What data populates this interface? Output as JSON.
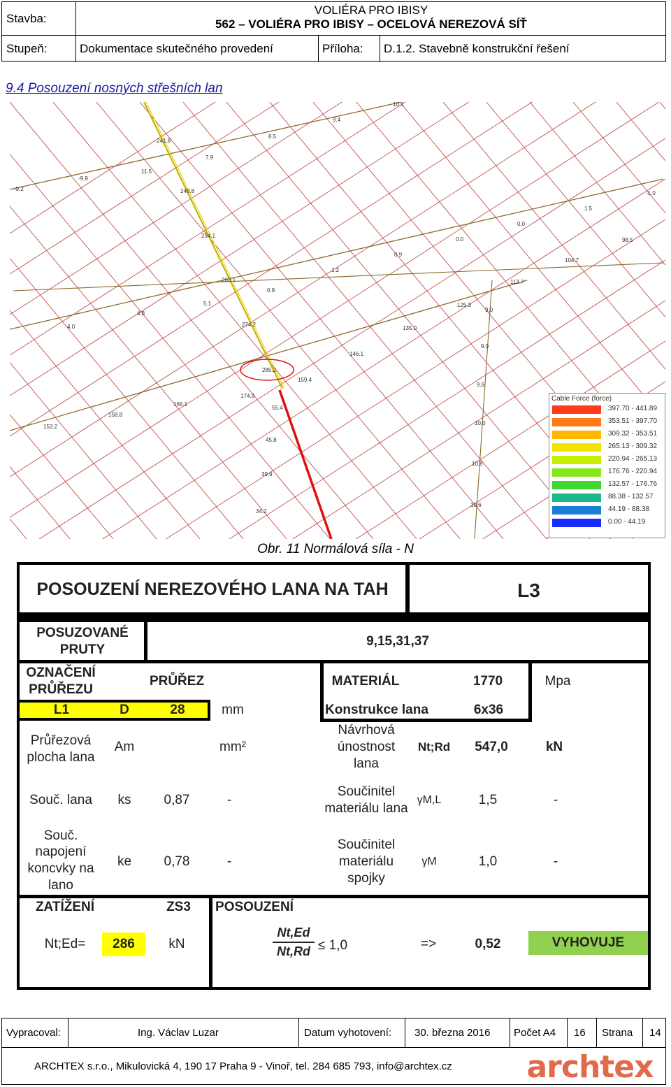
{
  "header": {
    "stavba_label": "Stavba:",
    "stavba_line1": "VOLIÉRA PRO IBISY",
    "stavba_line2": "562 – VOLIÉRA PRO IBISY – OCELOVÁ NEREZOVÁ SÍŤ",
    "stupen_label": "Stupeň:",
    "stupen_value": "Dokumentace skutečného provedení",
    "priloha_label": "Příloha:",
    "priloha_value": "D.1.2. Stavebně konstrukční řešení"
  },
  "section_title": "9.4 Posouzení nosných střešních lan",
  "drawing": {
    "labels": [
      "10.1",
      "9.4",
      "241.8",
      "8.5",
      "7.9",
      "-9.9",
      "11.5",
      "248.8",
      "-9.2",
      "254.1",
      "-1.0",
      "1.5",
      "0.0",
      "0.0",
      "0.9",
      "98.5",
      "104.7",
      "263.1",
      "1.2",
      "0.9",
      "113.7",
      "4.8",
      "5.1",
      "125.3",
      "9.0",
      "4.0",
      "274.2",
      "135.0",
      "9.0",
      "146.1",
      "285.2",
      "159.4",
      "9.6",
      "174.9",
      "166.1",
      "55.4",
      "153.2",
      "158.8",
      "10.0",
      "45.8",
      "10.8",
      "39.9",
      "10.6",
      "34.2"
    ],
    "highlighted_value": "285.2"
  },
  "legend": {
    "title": "Cable Force (force)",
    "items": [
      {
        "range": "397.70 - 441.89",
        "color": "#ff3b1a"
      },
      {
        "range": "353.51 - 397.70",
        "color": "#ff7a14"
      },
      {
        "range": "309.32 - 353.51",
        "color": "#ffb800"
      },
      {
        "range": "265.13 - 309.32",
        "color": "#f2e300"
      },
      {
        "range": "220.94 - 265.13",
        "color": "#c6f000"
      },
      {
        "range": "176.76 - 220.94",
        "color": "#84e81a"
      },
      {
        "range": "132.57 - 176.76",
        "color": "#3ed631"
      },
      {
        "range": "88.38 - 132.57",
        "color": "#19b98a"
      },
      {
        "range": "44.19 - 88.38",
        "color": "#1a7ed4"
      },
      {
        "range": "0.00 - 44.19",
        "color": "#1a2bff"
      }
    ]
  },
  "caption": "Obr. 11 Normálová síla - N",
  "calc": {
    "title": "POSOUZENÍ NEREZOVÉHO LANA NA TAH",
    "id": "L3",
    "posuzovane_pruty_label": "POSUZOVANÉ PRUTY",
    "posuzovane_pruty_value": "9,15,31,37",
    "oznaceni_label": "OZNAČENÍ PRŮŘEZU",
    "prurez_label": "PRŮŘEZ",
    "material_label": "MATERIÁL",
    "material_value": "1770",
    "material_unit": "Mpa",
    "section_name": "L1",
    "d_label": "D",
    "d_value": "28",
    "d_unit": "mm",
    "konstrukce_label": "Konstrukce lana",
    "konstrukce_value": "6x36",
    "plocha_label": "Průřezová plocha lana",
    "am_label": "Am",
    "am_unit": "mm²",
    "unosnost_label": "Návrhová únostnost lana",
    "nrd_label": "Nt;Rd",
    "nrd_value": "547,0",
    "nrd_unit": "kN",
    "souc_lana_label": "Souč. lana",
    "ks_label": "ks",
    "ks_value": "0,87",
    "ks_unit": "-",
    "gml_label_text": "Součinitel materiálu lana",
    "gml_symbol": "γM,L",
    "gml_value": "1,5",
    "gml_unit": "-",
    "souc_napojeni_label": "Souč. napojení koncvky na lano",
    "ke_label": "ke",
    "ke_value": "0,78",
    "ke_unit": "-",
    "gm_label_text": "Součinitel materiálu spojky",
    "gm_symbol": "γM",
    "gm_value": "1,0",
    "gm_unit": "-",
    "zatizeni_label": "ZATÍŽENÍ",
    "zs_label": "ZS3",
    "posouzeni_label": "POSOUZENÍ",
    "ned_label": "Nt;Ed=",
    "ned_value": "286",
    "ned_unit": "kN",
    "formula_num": "Nt,Ed",
    "formula_den": "Nt,Rd",
    "formula_cond": "≤ 1,0",
    "arrow": "=>",
    "ratio": "0,52",
    "result": "VYHOVUJE"
  },
  "footer": {
    "vypracoval_label": "Vypracoval:",
    "vypracoval_value": "Ing. Václav Luzar",
    "datum_label": "Datum vyhotovení:",
    "datum_value": "30. března 2016",
    "pocet_label": "Počet A4",
    "pocet_value": "16",
    "strana_label": "Strana",
    "strana_value": "14",
    "address": "ARCHTEX s.r.o., Mikulovická 4, 190 17 Praha 9 - Vinoř, tel. 284 685 793,  info@archtex.cz",
    "logo_text": "archtex"
  }
}
